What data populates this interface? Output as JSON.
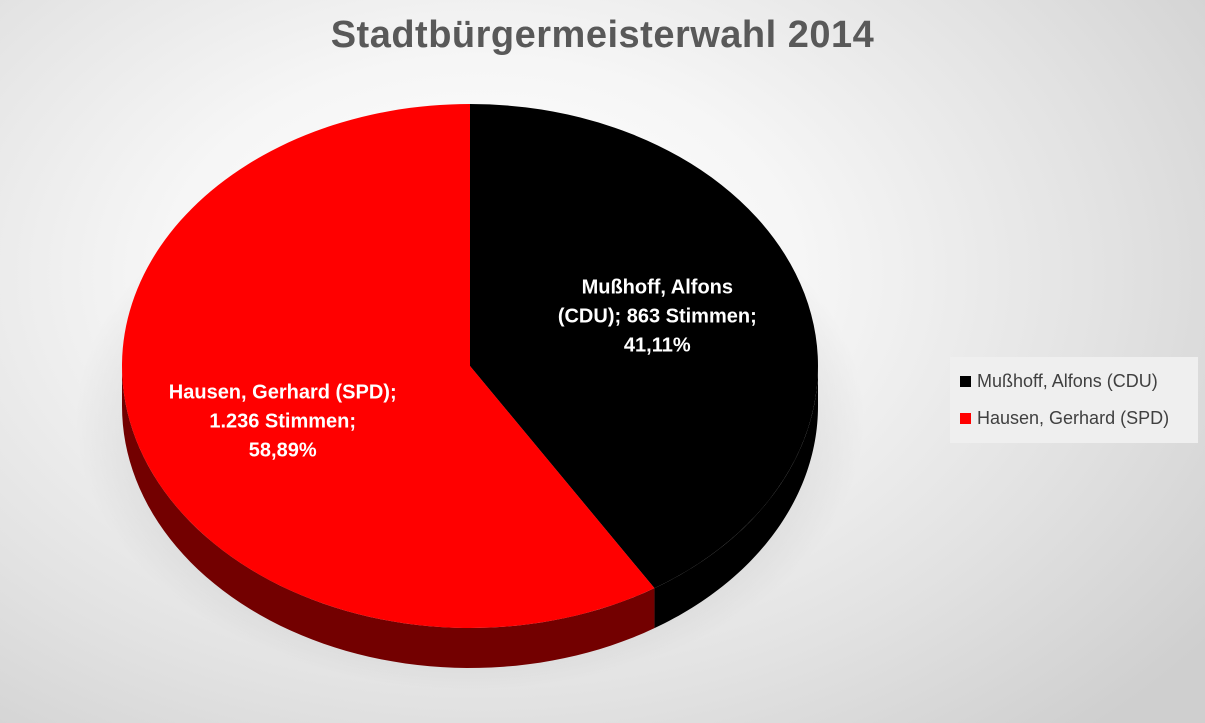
{
  "chart_data": {
    "type": "pie",
    "title": "Stadtbürgermeisterwahl 2014",
    "legend_position": "right",
    "slices": [
      {
        "name": "Mußhoff, Alfons (CDU)",
        "votes": 863,
        "percent": 41.11,
        "color": "#000000",
        "label_lines": [
          "Mußhoff, Alfons",
          "(CDU); 863 Stimmen;",
          "41,11%"
        ]
      },
      {
        "name": "Hausen, Gerhard (SPD)",
        "votes": 1236,
        "percent": 58.89,
        "color": "#ff0000",
        "label_lines": [
          "Hausen, Gerhard (SPD);",
          "1.236 Stimmen;",
          "58,89%"
        ]
      }
    ]
  }
}
